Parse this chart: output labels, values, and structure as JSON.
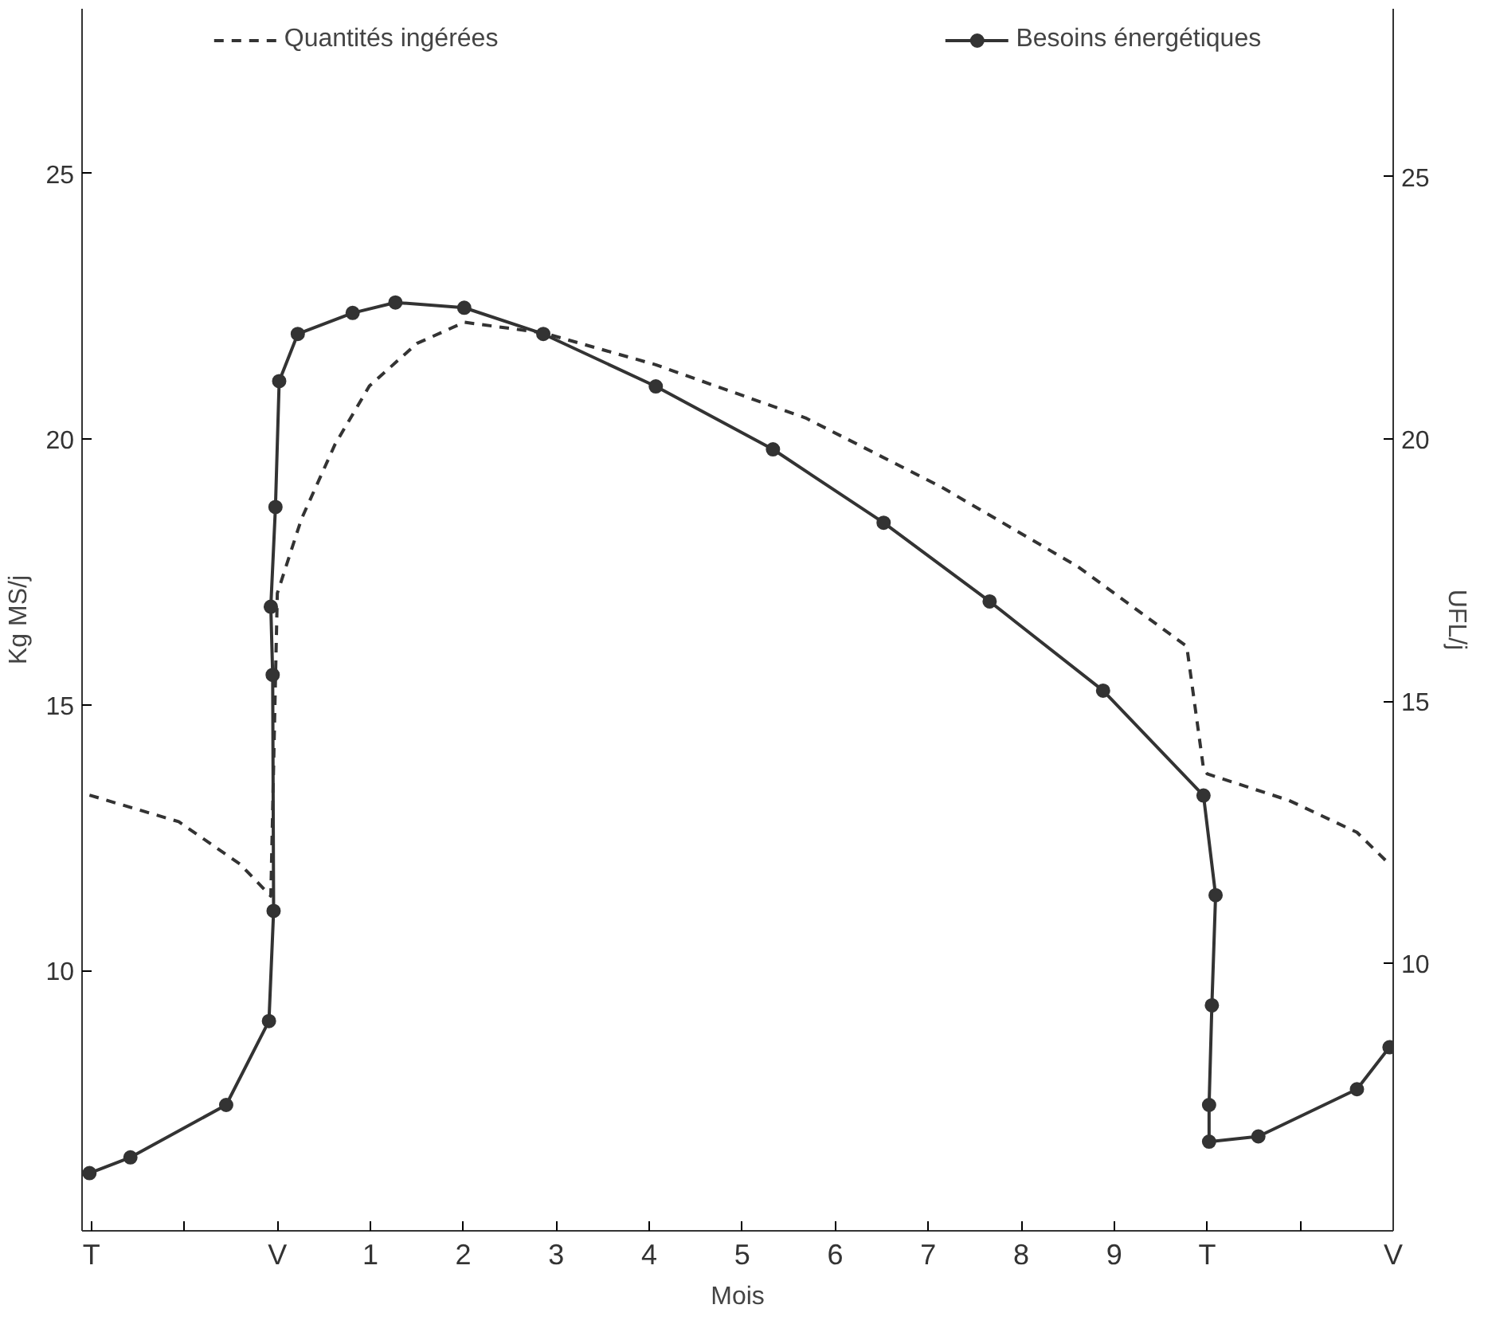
{
  "chart_data": {
    "type": "line",
    "xlabel": "Mois",
    "ylabel": "Kg MS/j",
    "y2label": "UFL/j",
    "xlim": [
      -2.1,
      12.0
    ],
    "ylim": [
      5.1,
      28.1
    ],
    "y2lim": [
      4.9,
      28.2
    ],
    "xticks": [
      {
        "value": -2,
        "label": "T"
      },
      {
        "value": -1,
        "label": null
      },
      {
        "value": 0,
        "label": "V"
      },
      1,
      2,
      3,
      4,
      5,
      6,
      7,
      8,
      9,
      {
        "value": 10,
        "label": "T"
      },
      {
        "value": 11,
        "label": null
      },
      {
        "value": 12,
        "label": "V"
      }
    ],
    "yticks": [
      10,
      15,
      20,
      25
    ],
    "y2ticks": [
      10,
      15,
      20,
      25
    ],
    "grid": false,
    "legend": "top",
    "series": [
      {
        "name": "Quantités ingérées",
        "color": "#333333",
        "line_style": "dashed",
        "marker": "none",
        "axis": "y",
        "x": [
          -2.02,
          -1.06,
          -0.4,
          -0.07,
          0,
          0.26,
          0.62,
          0.99,
          1.5,
          2.01,
          2.86,
          4.07,
          5.68,
          7.14,
          8.61,
          9.78,
          9.96,
          10.0,
          10.88,
          11.61,
          11.96
        ],
        "values": [
          13.3,
          12.8,
          12.0,
          11.4,
          17.1,
          18.5,
          19.9,
          21.0,
          21.8,
          22.2,
          22.0,
          21.4,
          20.4,
          19.1,
          17.6,
          16.1,
          13.8,
          13.7,
          13.2,
          12.6,
          12.0
        ]
      },
      {
        "name": "Besoins énergétiques",
        "color": "#333333",
        "line_style": "solid",
        "marker": "circle",
        "axis": "y2",
        "x": [
          -2.02,
          -1.58,
          -0.55,
          -0.09,
          -0.04,
          -0.05,
          -0.07,
          -0.02,
          0.02,
          0.22,
          0.81,
          1.27,
          2.01,
          2.86,
          4.07,
          5.33,
          6.52,
          7.66,
          8.88,
          9.96,
          10.09,
          10.05,
          10.02,
          10.02,
          10.55,
          11.61,
          11.96
        ],
        "values": [
          6.0,
          6.3,
          7.3,
          8.9,
          11.0,
          15.5,
          16.8,
          18.7,
          21.1,
          22.0,
          22.4,
          22.6,
          22.5,
          22.0,
          21.0,
          19.8,
          18.4,
          16.9,
          15.2,
          13.2,
          11.3,
          9.2,
          7.3,
          6.6,
          6.7,
          7.6,
          8.4
        ]
      }
    ]
  }
}
